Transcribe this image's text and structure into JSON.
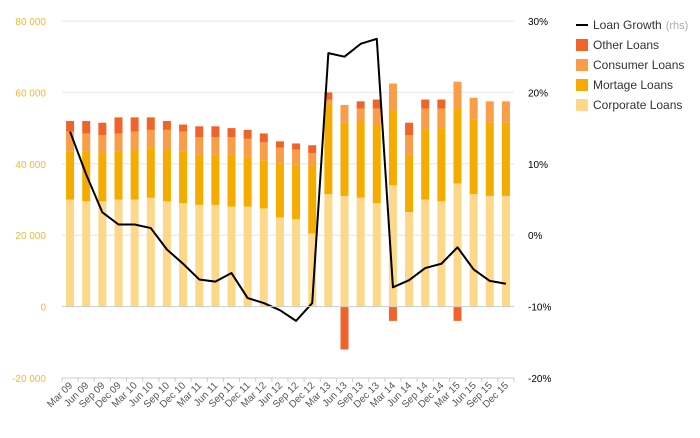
{
  "chart_data": {
    "type": "bar",
    "stacked": true,
    "title": "",
    "xlabel": "",
    "ylabel": "",
    "ylim": [
      -20000,
      80000
    ],
    "y_ticks": [
      -20000,
      0,
      20000,
      40000,
      60000,
      80000
    ],
    "y_tick_labels": [
      "-20 000",
      "0",
      "20 000",
      "40 000",
      "60 000",
      "80 000"
    ],
    "y2lim": [
      -20,
      30
    ],
    "y2_ticks": [
      -20,
      -10,
      0,
      10,
      20,
      30
    ],
    "y2_tick_labels": [
      "-20%",
      "-10%",
      "0%",
      "10%",
      "20%",
      "30%"
    ],
    "grid": true,
    "legend_position": "top-right",
    "categories": [
      "Mar 09",
      "Jun 09",
      "Sep 09",
      "Dec 09",
      "Mar 10",
      "Jun 10",
      "Sep 10",
      "Dec 10",
      "Mar 11",
      "Jun 11",
      "Sep 11",
      "Dec 11",
      "Mar 12",
      "Jun 12",
      "Sep 12",
      "Dec 12",
      "Mar 13",
      "Jun 13",
      "Sep 13",
      "Dec 13",
      "Mar 14",
      "Jun 14",
      "Sep 14",
      "Dec 14",
      "Mar 15",
      "Jun 15",
      "Sep 15",
      "Dec 15"
    ],
    "x_tick_labels": [
      "Mar 09",
      "Jun 09",
      "Sep 09",
      "Dec 09",
      "Mar 10",
      "Jun 10",
      "Sep 10",
      "Dec 10",
      "Mar 11",
      "Jun 11",
      "Sep 11",
      "Dec 11",
      "Mar 12",
      "Jun 12",
      "Sep 12",
      "Dec 12",
      "Mar 13",
      "Jun 13",
      "Sep 13",
      "Dec 13",
      "Mar 14",
      "Jun 14",
      "Sep 14",
      "Dec 14",
      "Mar 15",
      "Jun 15",
      "Sep 15",
      "Dec 15"
    ],
    "series": [
      {
        "name": "Corporate Loans",
        "color": "#fdd78a",
        "axis": "left",
        "kind": "bar",
        "values": [
          30000,
          29500,
          29500,
          30000,
          30000,
          30500,
          29500,
          29000,
          28500,
          28500,
          28000,
          28000,
          27500,
          25000,
          24500,
          20500,
          31500,
          31000,
          30500,
          29000,
          34000,
          26500,
          30000,
          29500,
          34500,
          31500,
          31000,
          31000
        ]
      },
      {
        "name": "Mortage Loans",
        "color": "#f5ab00",
        "axis": "left",
        "kind": "bar",
        "values": [
          13500,
          14000,
          13500,
          13500,
          14000,
          14000,
          14500,
          14500,
          14000,
          14000,
          14500,
          14000,
          13500,
          15000,
          15000,
          19000,
          25500,
          20500,
          21500,
          22000,
          21000,
          16000,
          19500,
          20500,
          21000,
          21000,
          20500,
          20500
        ]
      },
      {
        "name": "Consumer Loans",
        "color": "#f99d48",
        "axis": "left",
        "kind": "bar",
        "values": [
          5500,
          5000,
          5000,
          5000,
          5000,
          5000,
          5500,
          5500,
          5000,
          5000,
          5000,
          5000,
          5000,
          4500,
          4500,
          3500,
          1000,
          5000,
          3500,
          4500,
          7500,
          5500,
          6000,
          5500,
          7500,
          6000,
          6000,
          6000
        ]
      },
      {
        "name": "Other Loans",
        "color": "#f0642c",
        "axis": "left",
        "kind": "bar",
        "values": [
          3000,
          3500,
          3500,
          4500,
          4000,
          3500,
          2500,
          2000,
          3000,
          3000,
          2500,
          2500,
          2500,
          1800,
          1700,
          2200,
          2000,
          -12000,
          2000,
          2500,
          -4000,
          3500,
          2500,
          2500,
          -4000,
          0,
          0,
          0
        ]
      },
      {
        "name": "Loan Growth",
        "color": "#000000",
        "axis": "right",
        "kind": "line",
        "legend_suffix": "(rhs)",
        "values": [
          14.5,
          8.5,
          3.2,
          1.5,
          1.5,
          1.0,
          -2.0,
          -4.0,
          -6.2,
          -6.5,
          -5.3,
          -8.8,
          -9.5,
          -10.5,
          -12,
          -9.5,
          25.5,
          25.0,
          26.8,
          27.5,
          -7.3,
          -6.3,
          -4.6,
          -4.0,
          -1.7,
          -4.8,
          -6.4,
          -6.8
        ]
      }
    ]
  }
}
